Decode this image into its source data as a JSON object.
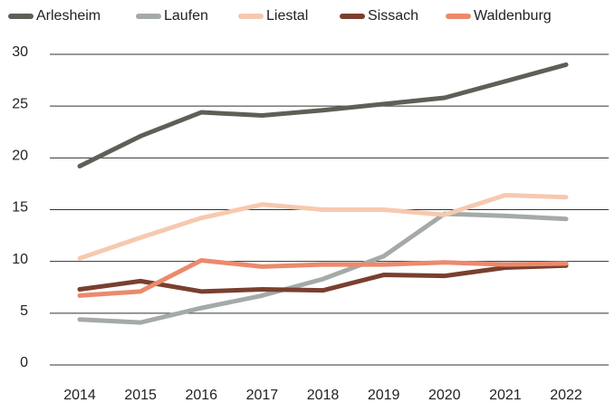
{
  "chart_data": {
    "type": "line",
    "categories": [
      "2014",
      "2015",
      "2016",
      "2017",
      "2018",
      "2019",
      "2020",
      "2021",
      "2022"
    ],
    "series": [
      {
        "name": "Arlesheim",
        "color": "#5f5f58",
        "values": [
          19.2,
          22.1,
          24.4,
          24.1,
          24.6,
          25.2,
          25.8,
          27.4,
          29.0
        ]
      },
      {
        "name": "Laufen",
        "color": "#a4aaa8",
        "values": [
          4.4,
          4.1,
          5.5,
          6.7,
          8.3,
          10.5,
          14.6,
          14.4,
          14.1
        ]
      },
      {
        "name": "Liestal",
        "color": "#f6c9b0",
        "values": [
          10.3,
          12.3,
          14.2,
          15.5,
          15.0,
          15.0,
          14.5,
          16.4,
          16.2
        ]
      },
      {
        "name": "Sissach",
        "color": "#7a3f2f",
        "values": [
          7.3,
          8.1,
          7.1,
          7.3,
          7.2,
          8.7,
          8.6,
          9.4,
          9.6
        ]
      },
      {
        "name": "Waldenburg",
        "color": "#eb8a6c",
        "values": [
          6.7,
          7.1,
          10.1,
          9.5,
          9.7,
          9.7,
          9.9,
          9.7,
          9.8
        ]
      }
    ],
    "ylim": [
      0,
      30
    ],
    "yticks": [
      0,
      5,
      10,
      15,
      20,
      25,
      30
    ],
    "grid": true,
    "legend": "top"
  }
}
